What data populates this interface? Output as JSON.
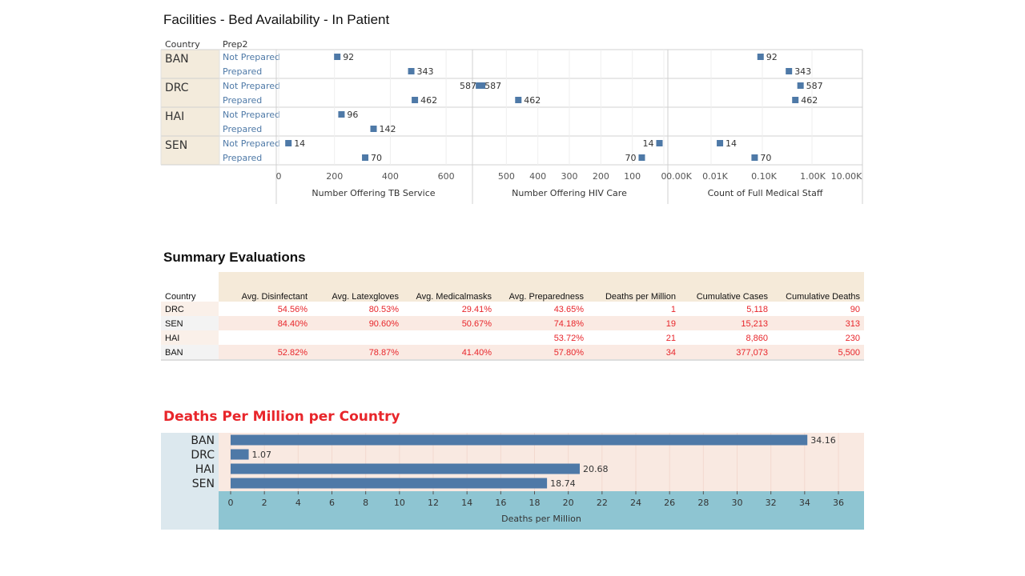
{
  "chart_data": [
    {
      "type": "scatter",
      "title": "Facilities - Bed Availability - In Patient",
      "row_headers": [
        "Country",
        "Prep2"
      ],
      "countries": [
        "BAN",
        "DRC",
        "HAI",
        "SEN"
      ],
      "prep_levels": [
        "Not Prepared",
        "Prepared"
      ],
      "panels": [
        {
          "xlabel": "Number Offering TB Service",
          "scale": "linear",
          "xlim": [
            0,
            680
          ],
          "ticks": [
            "0",
            "200",
            "400",
            "600"
          ],
          "tick_values": [
            0,
            200,
            400,
            600
          ],
          "values": [
            [
              92,
              343
            ],
            [
              587,
              462
            ],
            [
              96,
              142
            ],
            [
              14,
              70
            ]
          ],
          "value_positions": [
            [
              210,
              475
            ],
            [
              660,
              488
            ],
            [
              225,
              340
            ],
            [
              35,
              310
            ]
          ]
        },
        {
          "xlabel": "Number Offering HIV Care",
          "scale": "reversed",
          "xlim": [
            0,
            600
          ],
          "ticks": [
            "500",
            "400",
            "300",
            "200",
            "100",
            "0"
          ],
          "tick_values": [
            500,
            400,
            300,
            200,
            100,
            0
          ],
          "values": [
            [
              null,
              null
            ],
            [
              587,
              462
            ],
            [
              null,
              null
            ],
            [
              14,
              70
            ]
          ],
          "value_positions": [
            [
              null,
              null
            ],
            [
              587,
              462
            ],
            [
              null,
              null
            ],
            [
              14,
              70
            ]
          ]
        },
        {
          "xlabel": "Count of Full Medical Staff",
          "scale": "log",
          "ticks": [
            "0.00K",
            "0.01K",
            "0.10K",
            "1.00K",
            "10.00K"
          ],
          "values": [
            [
              92,
              343
            ],
            [
              587,
              462
            ],
            [
              null,
              null
            ],
            [
              14,
              70
            ]
          ]
        }
      ]
    },
    {
      "type": "table",
      "title": "Summary Evaluations",
      "columns": [
        "Country",
        "Avg. Disinfectant",
        "Avg. Latexgloves",
        "Avg. Medicalmasks",
        "Avg. Preparedness",
        "Deaths per Million",
        "Cumulative Cases",
        "Cumulative Deaths"
      ],
      "rows": [
        [
          "DRC",
          "54.56%",
          "80.53%",
          "29.41%",
          "43.65%",
          "1",
          "5,118",
          "90"
        ],
        [
          "SEN",
          "84.40%",
          "90.60%",
          "50.67%",
          "74.18%",
          "19",
          "15,213",
          "313"
        ],
        [
          "HAI",
          "",
          "",
          "",
          "53.72%",
          "21",
          "8,860",
          "230"
        ],
        [
          "BAN",
          "52.82%",
          "78.87%",
          "41.40%",
          "57.80%",
          "34",
          "377,073",
          "5,500"
        ]
      ]
    },
    {
      "type": "bar",
      "orientation": "horizontal",
      "title": "Deaths Per Million per Country",
      "categories": [
        "BAN",
        "DRC",
        "HAI",
        "SEN"
      ],
      "values": [
        34.16,
        1.07,
        20.68,
        18.74
      ],
      "value_labels": [
        "34.16",
        "1.07",
        "20.68",
        "18.74"
      ],
      "xlabel": "Deaths per Million",
      "xlim": [
        0,
        37.5
      ],
      "ticks": [
        "0",
        "2",
        "4",
        "6",
        "8",
        "10",
        "12",
        "14",
        "16",
        "18",
        "20",
        "22",
        "24",
        "26",
        "28",
        "30",
        "32",
        "34",
        "36"
      ]
    }
  ],
  "colors": {
    "mark": "#4e79a7",
    "row_header_bg": "#f3ebdc",
    "table_header_bg": "#f5ead9",
    "table_text": "#e8262b",
    "bar_bg": "#f9e9e1",
    "bar_label_bg": "#dce8ee",
    "bar_axis_bg": "#8ec5d2",
    "title_red": "#e8262b"
  }
}
